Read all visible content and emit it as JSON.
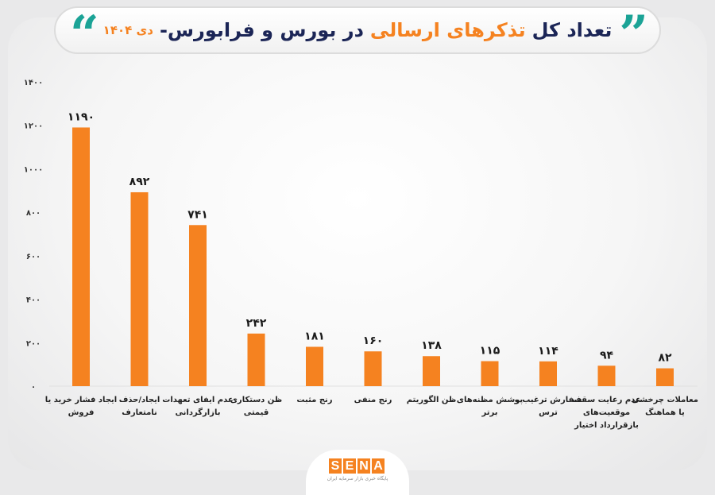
{
  "title": {
    "part1": "تعداد کل",
    "accent": "تذکرهای ارسالی",
    "part2": "در بورس و فرابورس-",
    "date": "دی ۱۴۰۴"
  },
  "logo": {
    "text": "SENA",
    "subtitle": "پایگاه خبری بازار سرمایه ایران"
  },
  "colors": {
    "bar": "#f58220",
    "title": "#1b2556",
    "accent": "#f58220",
    "quote": "#1ba396"
  },
  "chart_data": {
    "type": "bar",
    "title": "تعداد کل تذکرهای ارسالی در بورس و فرابورس- دی ۱۴۰۴",
    "categories": [
      [
        "ایجاد فشار خرید یا",
        "فروش"
      ],
      [
        "ایجاد/حذف",
        "نامتعارف"
      ],
      [
        "عدم ایفای تعهدات",
        "بازارگردانی"
      ],
      [
        "ظن دستکاری",
        "قیمتی"
      ],
      [
        "رنج مثبت"
      ],
      [
        "رنج منفی"
      ],
      [
        "ظن الگوریتم"
      ],
      [
        "پوشش مظنه‌های",
        "برتر"
      ],
      [
        "سفارش ترغیب و",
        "ترس"
      ],
      [
        "عدم رعایت سقف",
        "موقعیت‌های",
        "بازقرارداد اختیار"
      ],
      [
        "معاملات چرخشی",
        "یا هماهنگ"
      ]
    ],
    "values": [
      1190,
      892,
      741,
      242,
      181,
      160,
      138,
      115,
      114,
      94,
      82
    ],
    "value_labels": [
      "۱۱۹۰",
      "۸۹۲",
      "۷۴۱",
      "۲۴۲",
      "۱۸۱",
      "۱۶۰",
      "۱۳۸",
      "۱۱۵",
      "۱۱۴",
      "۹۴",
      "۸۲"
    ],
    "ylim": [
      0,
      1400
    ],
    "yticks": [
      0,
      200,
      400,
      600,
      800,
      1000,
      1200,
      1400
    ],
    "ytick_labels": [
      "۰",
      "۲۰۰",
      "۴۰۰",
      "۶۰۰",
      "۸۰۰",
      "۱۰۰۰",
      "۱۲۰۰",
      "۱۴۰۰"
    ],
    "grid": false,
    "legend": "none"
  }
}
